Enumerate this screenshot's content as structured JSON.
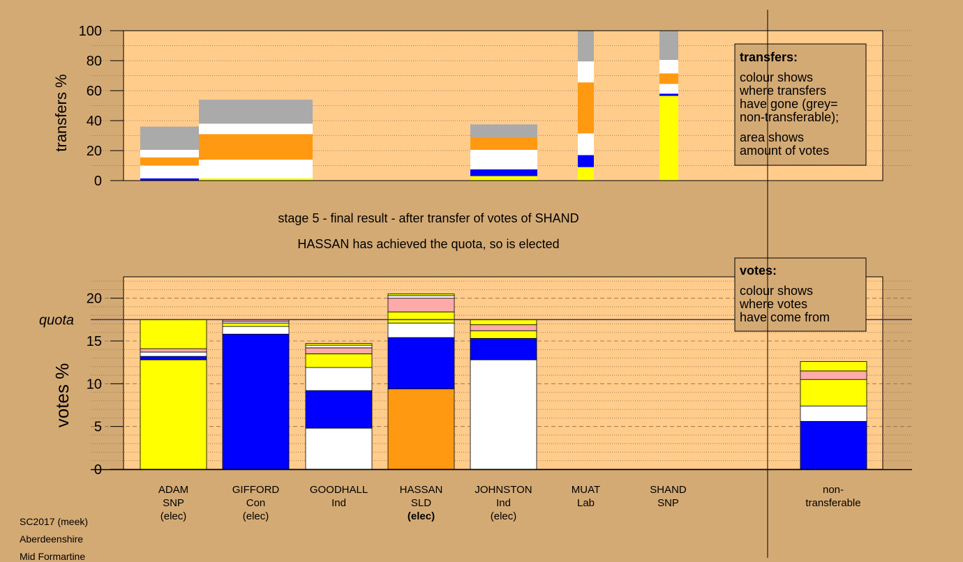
{
  "colors": {
    "panel_bg": "#ffcc8c",
    "page_bg": "#d4aa74",
    "yellow": "#ffff00",
    "blue": "#0000ff",
    "white": "#ffffff",
    "orange": "#ff9911",
    "pink": "#ffaaaa",
    "grey": "#aaaaaa"
  },
  "stage_title": "stage 5 - final result - after transfer of votes of SHAND",
  "stage_subtitle": "HASSAN has achieved the quota, so is elected",
  "transfers_legend": {
    "title": "transfers:",
    "line1": "colour shows",
    "line2": "where transfers",
    "line3": "have gone (grey=",
    "line4": "non-transferable);",
    "line5": "area shows",
    "line6": "amount of votes"
  },
  "votes_legend": {
    "title": "votes:",
    "line1": "colour shows",
    "line2": "where votes",
    "line3": "have come from"
  },
  "quota_label": "quota",
  "footer": {
    "line1": "SC2017 (meek)",
    "line2": "Aberdeenshire",
    "line3": "Mid Formartine"
  },
  "candidates": [
    {
      "name": "ADAM",
      "party": "SNP",
      "status": "(elec)",
      "bold": false
    },
    {
      "name": "GIFFORD",
      "party": "Con",
      "status": "(elec)",
      "bold": false
    },
    {
      "name": "GOODHALL",
      "party": "Ind",
      "status": "",
      "bold": false
    },
    {
      "name": "HASSAN",
      "party": "SLD",
      "status": "(elec)",
      "bold": true
    },
    {
      "name": "JOHNSTON",
      "party": "Ind",
      "status": "(elec)",
      "bold": false
    },
    {
      "name": "MUAT",
      "party": "Lab",
      "status": "",
      "bold": false
    },
    {
      "name": "SHAND",
      "party": "SNP",
      "status": "",
      "bold": false
    }
  ],
  "nontransferable_label": {
    "line1": "non-",
    "line2": "transferable"
  },
  "chart_data": [
    {
      "type": "bar",
      "name": "transfers",
      "ylabel": "transfers %",
      "ylim": [
        0,
        100
      ],
      "yticks": [
        0,
        20,
        40,
        60,
        80,
        100
      ],
      "grid": "dotted every 10",
      "bars": [
        {
          "x0": 0.5,
          "x1": 2.5,
          "segments": [
            {
              "color": "blue",
              "value": 1.5
            },
            {
              "color": "white",
              "value": 8.5
            },
            {
              "color": "orange",
              "value": 5.5
            },
            {
              "color": "white",
              "value": 5
            },
            {
              "color": "grey",
              "value": 15.5
            }
          ]
        },
        {
          "x0": 2.5,
          "x1": 4.0,
          "segments": [
            {
              "color": "yellow",
              "value": 1.5
            },
            {
              "color": "white",
              "value": 12.5
            },
            {
              "color": "orange",
              "value": 17
            },
            {
              "color": "white",
              "value": 7
            },
            {
              "color": "grey",
              "value": 16
            }
          ]
        },
        {
          "x0": 5.75,
          "x1": 6.75,
          "segments": [
            {
              "color": "yellow",
              "value": 3
            },
            {
              "color": "blue",
              "value": 4.5
            },
            {
              "color": "white",
              "value": 13
            },
            {
              "color": "orange",
              "value": 8.5
            },
            {
              "color": "grey",
              "value": 8.5
            }
          ]
        },
        {
          "x0": 7.2,
          "x1": 7.4,
          "segments": [
            {
              "color": "yellow",
              "value": 9
            },
            {
              "color": "blue",
              "value": 8
            },
            {
              "color": "white",
              "value": 14.5
            },
            {
              "color": "orange",
              "value": 34
            },
            {
              "color": "white",
              "value": 14
            },
            {
              "color": "grey",
              "value": 20.5
            }
          ]
        },
        {
          "x0": 8.2,
          "x1": 8.45,
          "segments": [
            {
              "color": "yellow",
              "value": 56.5
            },
            {
              "color": "blue",
              "value": 1.5
            },
            {
              "color": "white",
              "value": 6.5
            },
            {
              "color": "orange",
              "value": 7
            },
            {
              "color": "white",
              "value": 9
            },
            {
              "color": "grey",
              "value": 19.5
            }
          ]
        }
      ]
    },
    {
      "type": "bar",
      "name": "votes",
      "ylabel": "votes %",
      "ylim": [
        0,
        22.5
      ],
      "yticks": [
        0,
        5,
        10,
        15,
        20
      ],
      "quota": 17.5,
      "categories": [
        "ADAM",
        "GIFFORD",
        "GOODHALL",
        "HASSAN",
        "JOHNSTON",
        "MUAT",
        "SHAND",
        "non-transferable"
      ],
      "stacks": [
        [
          {
            "color": "yellow",
            "value": 12.8
          },
          {
            "color": "blue",
            "value": 0.4
          },
          {
            "color": "white",
            "value": 0.5
          },
          {
            "color": "pink",
            "value": 0.4
          },
          {
            "color": "yellow",
            "value": 3.4
          }
        ],
        [
          {
            "color": "blue",
            "value": 15.8
          },
          {
            "color": "white",
            "value": 0.9
          },
          {
            "color": "yellow",
            "value": 0.4
          },
          {
            "color": "white",
            "value": 0.2
          },
          {
            "color": "pink",
            "value": 0.2
          }
        ],
        [
          {
            "color": "white",
            "value": 4.8
          },
          {
            "color": "blue",
            "value": 4.4
          },
          {
            "color": "white",
            "value": 2.7
          },
          {
            "color": "yellow",
            "value": 1.6
          },
          {
            "color": "pink",
            "value": 0.7
          },
          {
            "color": "white",
            "value": 0.3
          },
          {
            "color": "yellow",
            "value": 0.2
          }
        ],
        [
          {
            "color": "orange",
            "value": 9.4
          },
          {
            "color": "blue",
            "value": 6.0
          },
          {
            "color": "white",
            "value": 1.7
          },
          {
            "color": "yellow",
            "value": 1.3
          },
          {
            "color": "pink",
            "value": 1.6
          },
          {
            "color": "white",
            "value": 0.3
          },
          {
            "color": "yellow",
            "value": 0.2
          }
        ],
        [
          {
            "color": "white",
            "value": 12.8
          },
          {
            "color": "blue",
            "value": 2.5
          },
          {
            "color": "yellow",
            "value": 0.9
          },
          {
            "color": "pink",
            "value": 0.7
          },
          {
            "color": "yellow",
            "value": 0.6
          }
        ],
        [],
        [],
        [
          {
            "color": "blue",
            "value": 5.6
          },
          {
            "color": "white",
            "value": 1.8
          },
          {
            "color": "yellow",
            "value": 3.1
          },
          {
            "color": "pink",
            "value": 1.0
          },
          {
            "color": "yellow",
            "value": 1.1
          }
        ]
      ]
    }
  ]
}
